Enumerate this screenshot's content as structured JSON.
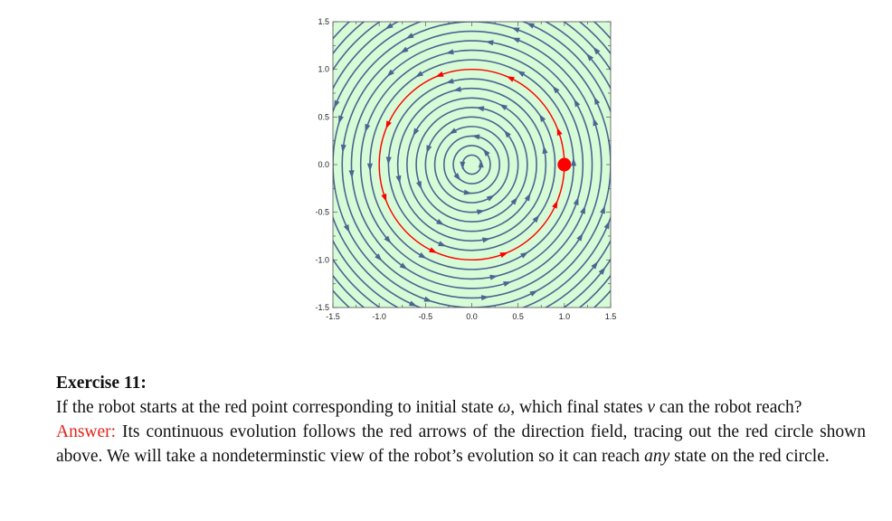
{
  "chart_data": {
    "type": "vector-field-streamplot",
    "title": "",
    "xlabel": "",
    "ylabel": "",
    "xlim": [
      -1.5,
      1.5
    ],
    "ylim": [
      -1.5,
      1.5
    ],
    "x_ticks": [
      "-1.5",
      "-1.0",
      "-0.5",
      "0.0",
      "0.5",
      "1.0",
      "1.5"
    ],
    "y_ticks": [
      "1.5",
      "1.0",
      "0.5",
      "0.0",
      "-0.5",
      "-1.0",
      "-1.5"
    ],
    "field": "counterclockwise rotation (dx = -y, dy = x)",
    "stream_radii": [
      0.1,
      0.2,
      0.3,
      0.4,
      0.5,
      0.6,
      0.7,
      0.8,
      0.9,
      1.1,
      1.2,
      1.3,
      1.4,
      1.5,
      1.6,
      1.7,
      1.8,
      1.9,
      2.0
    ],
    "highlight_circle": {
      "radius": 1.0,
      "color": "#ff0000"
    },
    "start_point": {
      "x": 1.0,
      "y": 0.0,
      "color": "#ff0000"
    },
    "colors": {
      "background": "#d6fbd6",
      "streamlines": "#4a6592"
    }
  },
  "exercise": {
    "title": "Exercise 11:",
    "question_a": "If the robot starts at the red point corresponding to initial state ",
    "omega": "ω",
    "question_b": ", which final states ",
    "nu": "ν",
    "question_c": " can the robot reach?",
    "answer_label": "Answer:",
    "answer_a": " Its continuous evolution follows the red arrows of the direction field, tracing out the red circle shown above. We will take a nondeterminstic view of the robot’s evolution so it can reach ",
    "answer_any": "any",
    "answer_b": " state on the red circle."
  }
}
